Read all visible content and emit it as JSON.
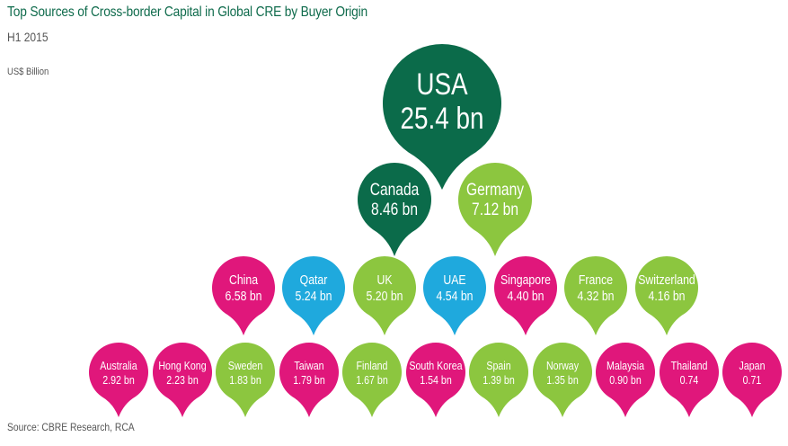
{
  "title": "Top Sources of Cross-border Capital in Global CRE by Buyer Origin",
  "subtitle": "H1 2015",
  "unit": "US$ Billion",
  "source": "Source: CBRE Research, RCA",
  "colors": {
    "dark_green": "#0b6b4a",
    "light_green": "#8cc63f",
    "blue": "#1fa9dd",
    "magenta": "#e0177b"
  },
  "chart_data": {
    "type": "bubble",
    "unit": "US$ Billion",
    "items": [
      {
        "country": "USA",
        "label": "25.4 bn",
        "value": 25.4,
        "color": "dark_green",
        "row": 0
      },
      {
        "country": "Canada",
        "label": "8.46 bn",
        "value": 8.46,
        "color": "dark_green",
        "row": 1
      },
      {
        "country": "Germany",
        "label": "7.12 bn",
        "value": 7.12,
        "color": "light_green",
        "row": 1
      },
      {
        "country": "China",
        "label": "6.58 bn",
        "value": 6.58,
        "color": "magenta",
        "row": 2
      },
      {
        "country": "Qatar",
        "label": "5.24 bn",
        "value": 5.24,
        "color": "blue",
        "row": 2
      },
      {
        "country": "UK",
        "label": "5.20 bn",
        "value": 5.2,
        "color": "light_green",
        "row": 2
      },
      {
        "country": "UAE",
        "label": "4.54 bn",
        "value": 4.54,
        "color": "blue",
        "row": 2
      },
      {
        "country": "Singapore",
        "label": "4.40 bn",
        "value": 4.4,
        "color": "magenta",
        "row": 2
      },
      {
        "country": "France",
        "label": "4.32 bn",
        "value": 4.32,
        "color": "light_green",
        "row": 2
      },
      {
        "country": "Switzerland",
        "label": "4.16 bn",
        "value": 4.16,
        "color": "light_green",
        "row": 2
      },
      {
        "country": "Australia",
        "label": "2.92 bn",
        "value": 2.92,
        "color": "magenta",
        "row": 3
      },
      {
        "country": "Hong Kong",
        "label": "2.23 bn",
        "value": 2.23,
        "color": "magenta",
        "row": 3
      },
      {
        "country": "Sweden",
        "label": "1.83 bn",
        "value": 1.83,
        "color": "light_green",
        "row": 3
      },
      {
        "country": "Taiwan",
        "label": "1.79 bn",
        "value": 1.79,
        "color": "magenta",
        "row": 3
      },
      {
        "country": "Finland",
        "label": "1.67 bn",
        "value": 1.67,
        "color": "light_green",
        "row": 3
      },
      {
        "country": "South Korea",
        "label": "1.54 bn",
        "value": 1.54,
        "color": "magenta",
        "row": 3
      },
      {
        "country": "Spain",
        "label": "1.39 bn",
        "value": 1.39,
        "color": "light_green",
        "row": 3
      },
      {
        "country": "Norway",
        "label": "1.35 bn",
        "value": 1.35,
        "color": "light_green",
        "row": 3
      },
      {
        "country": "Malaysia",
        "label": "0.90 bn",
        "value": 0.9,
        "color": "magenta",
        "row": 3
      },
      {
        "country": "Thailand",
        "label": "0.74",
        "value": 0.74,
        "color": "magenta",
        "row": 3
      },
      {
        "country": "Japan",
        "label": "0.71",
        "value": 0.71,
        "color": "magenta",
        "row": 3
      }
    ]
  }
}
